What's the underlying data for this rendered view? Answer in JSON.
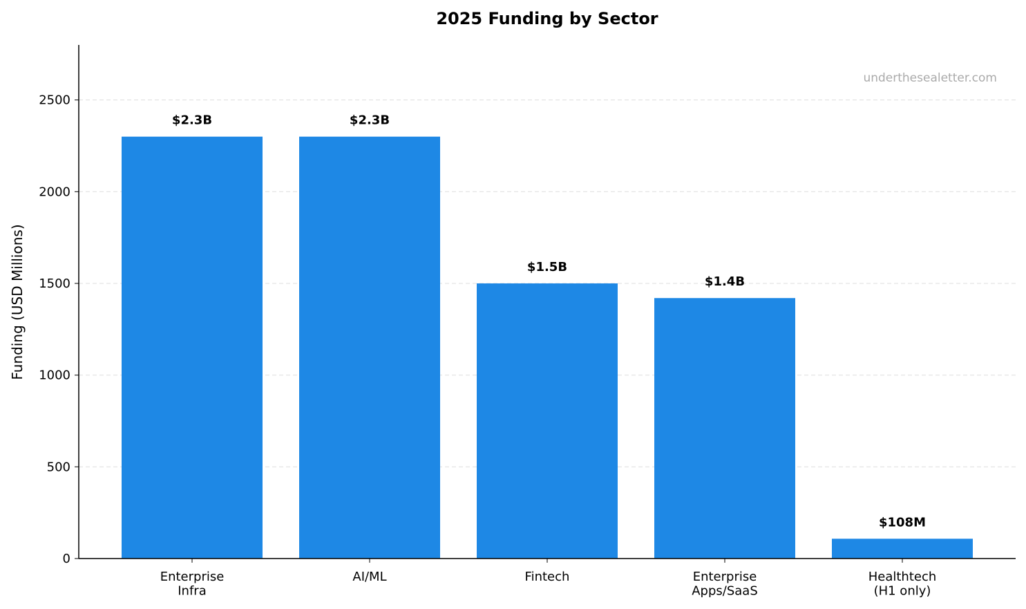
{
  "chart_data": {
    "type": "bar",
    "title": "2025 Funding by Sector",
    "ylabel": "Funding (USD Millions)",
    "annotation": "underthesealetter.com",
    "categories": [
      "Enterprise\nInfra",
      "AI/ML",
      "Fintech",
      "Enterprise\nApps/SaaS",
      "Healthtech\n(H1 only)"
    ],
    "values": [
      2300,
      2300,
      1500,
      1420,
      108
    ],
    "value_labels": [
      "$2.3B",
      "$2.3B",
      "$1.5B",
      "$1.4B",
      "$108M"
    ],
    "color": "#1e88e5",
    "ylim": [
      0,
      2800
    ],
    "yticks": [
      0,
      500,
      1000,
      1500,
      2000,
      2500
    ],
    "grid": true
  }
}
